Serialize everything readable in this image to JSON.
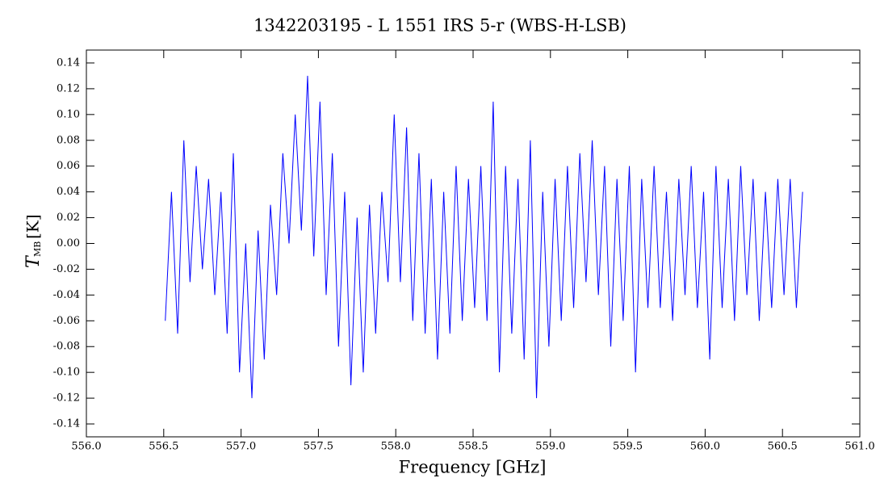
{
  "chart_data": {
    "type": "line",
    "title": "1342203195 - L 1551 IRS 5-r (WBS-H-LSB)",
    "x_label": "Frequency [GHz]",
    "y_label": "T",
    "y_label_sub": "MB",
    "y_label_unit": "[K]",
    "xlim": [
      556.0,
      561.0
    ],
    "ylim": [
      -0.15,
      0.15
    ],
    "xticks": [
      {
        "value": 556,
        "label": "556.0"
      },
      {
        "value": 556.5,
        "label": "556.5"
      },
      {
        "value": 557,
        "label": "557.0"
      },
      {
        "value": 557.5,
        "label": "557.5"
      },
      {
        "value": 558,
        "label": "558.0"
      },
      {
        "value": 558.5,
        "label": "558.5"
      },
      {
        "value": 559,
        "label": "559.0"
      },
      {
        "value": 559.5,
        "label": "559.5"
      },
      {
        "value": 560,
        "label": "560.0"
      },
      {
        "value": 560.5,
        "label": "560.5"
      },
      {
        "value": 561,
        "label": "561.0"
      }
    ],
    "yticks": [
      -0.14,
      -0.12,
      {
        "value": -0.1,
        "label": "-0.10"
      },
      -0.08,
      -0.06,
      -0.04,
      -0.02,
      {
        "value": 0,
        "label": "0.00"
      },
      0.02,
      0.04,
      0.06,
      0.08,
      {
        "value": 0.1,
        "label": "0.10"
      },
      0.12,
      0.14
    ],
    "series": [
      {
        "color": "#0000ff",
        "x": [
          556.51,
          556.55,
          556.59,
          556.63,
          556.67,
          556.71,
          556.75,
          556.79,
          556.83,
          556.87,
          556.91,
          556.95,
          556.99,
          557.03,
          557.07,
          557.11,
          557.15,
          557.19,
          557.23,
          557.27,
          557.31,
          557.35,
          557.39,
          557.43,
          557.47,
          557.51,
          557.55,
          557.59,
          557.63,
          557.67,
          557.71,
          557.75,
          557.79,
          557.83,
          557.87,
          557.91,
          557.95,
          557.99,
          558.03,
          558.07,
          558.11,
          558.15,
          558.19,
          558.23,
          558.27,
          558.31,
          558.35,
          558.39,
          558.43,
          558.47,
          558.51,
          558.55,
          558.59,
          558.63,
          558.67,
          558.71,
          558.75,
          558.79,
          558.83,
          558.87,
          558.91,
          558.95,
          558.99,
          559.03,
          559.07,
          559.11,
          559.15,
          559.19,
          559.23,
          559.27,
          559.31,
          559.35,
          559.39,
          559.43,
          559.47,
          559.51,
          559.55,
          559.59,
          559.63,
          559.67,
          559.71,
          559.75,
          559.79,
          559.83,
          559.87,
          559.91,
          559.95,
          559.99,
          560.03,
          560.07,
          560.11,
          560.15,
          560.19,
          560.23,
          560.27,
          560.31,
          560.35,
          560.39,
          560.43,
          560.47,
          560.51,
          560.55,
          560.59,
          560.63
        ],
        "values": [
          -0.06,
          0.04,
          -0.07,
          0.08,
          -0.03,
          0.06,
          -0.02,
          0.05,
          -0.04,
          0.04,
          -0.07,
          0.07,
          -0.1,
          0.0,
          -0.12,
          0.01,
          -0.09,
          0.03,
          -0.04,
          0.07,
          0.0,
          0.1,
          0.01,
          0.13,
          -0.01,
          0.11,
          -0.04,
          0.07,
          -0.08,
          0.04,
          -0.11,
          0.02,
          -0.1,
          0.03,
          -0.07,
          0.04,
          -0.03,
          0.1,
          -0.03,
          0.09,
          -0.06,
          0.07,
          -0.07,
          0.05,
          -0.09,
          0.04,
          -0.07,
          0.06,
          -0.06,
          0.05,
          -0.05,
          0.06,
          -0.06,
          0.11,
          -0.1,
          0.06,
          -0.07,
          0.05,
          -0.09,
          0.08,
          -0.12,
          0.04,
          -0.08,
          0.05,
          -0.06,
          0.06,
          -0.05,
          0.07,
          -0.03,
          0.08,
          -0.04,
          0.06,
          -0.08,
          0.05,
          -0.06,
          0.06,
          -0.1,
          0.05,
          -0.05,
          0.06,
          -0.05,
          0.04,
          -0.06,
          0.05,
          -0.04,
          0.06,
          -0.05,
          0.04,
          -0.09,
          0.06,
          -0.05,
          0.05,
          -0.06,
          0.06,
          -0.04,
          0.05,
          -0.06,
          0.04,
          -0.05,
          0.05,
          -0.04,
          0.05,
          -0.05,
          0.04
        ]
      }
    ]
  }
}
